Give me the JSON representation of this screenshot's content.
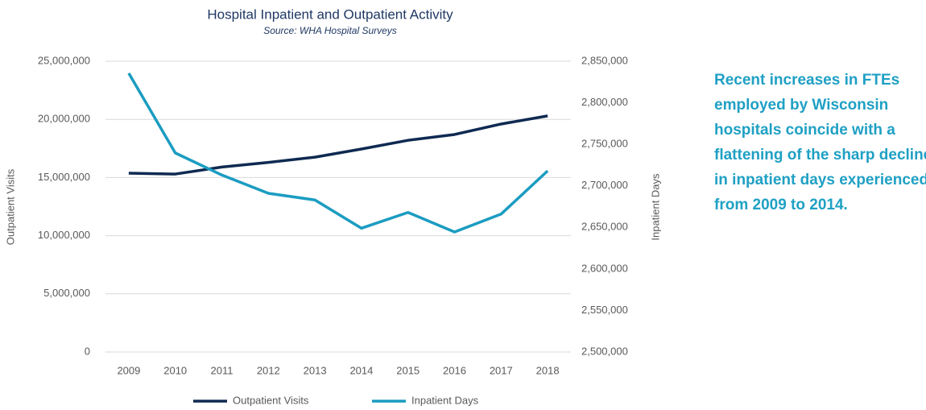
{
  "chart_data": {
    "type": "line",
    "title": "Hospital Inpatient and Outpatient Activity",
    "subtitle": "Source: WHA Hospital Surveys",
    "ylabel": "Outpatient Visits",
    "y2label": "Inpatient Days",
    "categories": [
      "2009",
      "2010",
      "2011",
      "2012",
      "2013",
      "2014",
      "2015",
      "2016",
      "2017",
      "2018"
    ],
    "series": [
      {
        "name": "Outpatient Visits",
        "color": "#0f2a52",
        "values": [
          15370000,
          15300000,
          15900000,
          16300000,
          16750000,
          17450000,
          18200000,
          18700000,
          19600000,
          20300000
        ]
      },
      {
        "name": "Inpatient Days",
        "color": "#1b9cc1",
        "axis": "y2",
        "values": [
          2835600,
          2739600,
          2713000,
          2691000,
          2683000,
          2649000,
          2668000,
          2644500,
          2666000,
          2718000
        ]
      }
    ],
    "ylim": [
      0,
      25000000
    ],
    "yticks": [
      0,
      {
        "value": 5000000,
        "label": "5,000,000"
      },
      {
        "value": 10000000,
        "label": "10,000,000"
      },
      {
        "value": 15000000,
        "label": "15,000,000"
      },
      {
        "value": 20000000,
        "label": "20,000,000"
      },
      {
        "value": 25000000,
        "label": "25,000,000"
      }
    ],
    "y2lim": [
      2500000,
      2850000
    ],
    "y2ticks": [
      {
        "value": 2500000,
        "label": "2,500,000"
      },
      {
        "value": 2550000,
        "label": "2,550,000"
      },
      {
        "value": 2600000,
        "label": "2,600,000"
      },
      {
        "value": 2650000,
        "label": "2,650,000"
      },
      {
        "value": 2700000,
        "label": "2,700,000"
      },
      {
        "value": 2750000,
        "label": "2,750,000"
      },
      {
        "value": 2800000,
        "label": "2,800,000"
      },
      {
        "value": 2850000,
        "label": "2,850,000"
      }
    ],
    "grid": true,
    "legend": "bottom",
    "annotation": "Recent increases in FTEs employed by Wisconsin hospitals coincide with a flattening of the sharp decline in inpatient days experienced from 2009 to 2014."
  }
}
